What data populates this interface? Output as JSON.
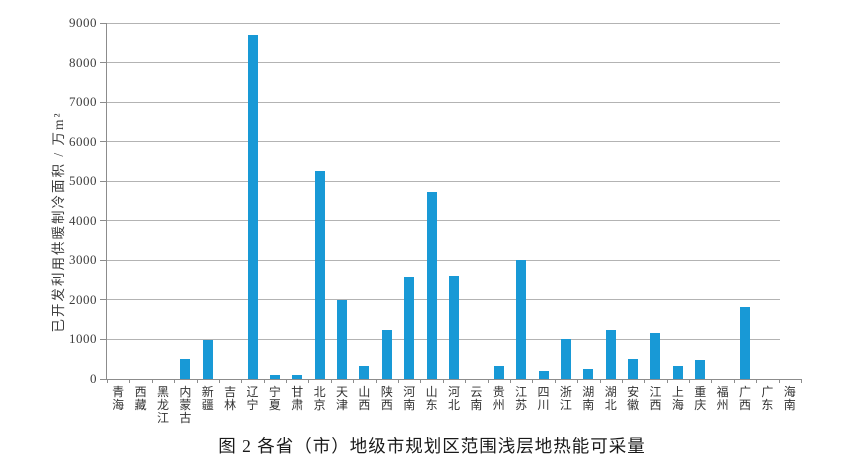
{
  "figure_caption": "图 2 各省（市）地级市规划区范围浅层地热能可采量",
  "chart_data": {
    "type": "bar",
    "title": "",
    "xlabel": "",
    "ylabel": "已开发利用供暖制冷面积 / 万m²",
    "ylim": [
      0,
      9000
    ],
    "yticks": [
      0,
      1000,
      2000,
      3000,
      4000,
      5000,
      6000,
      7000,
      8000,
      9000
    ],
    "grid": "horizontal",
    "legend_position": "none",
    "categories": [
      "青海",
      "西藏",
      "黑龙江",
      "内蒙古",
      "新疆",
      "吉林",
      "辽宁",
      "宁夏",
      "甘肃",
      "北京",
      "天津",
      "山西",
      "陕西",
      "河南",
      "山东",
      "河北",
      "云南",
      "贵州",
      "江苏",
      "四川",
      "浙江",
      "湖南",
      "湖北",
      "安徽",
      "江西",
      "上海",
      "重庆",
      "福州",
      "广西",
      "广东",
      "海南"
    ],
    "values": [
      0,
      0,
      0,
      510,
      990,
      0,
      8700,
      90,
      110,
      5260,
      2000,
      340,
      1250,
      2580,
      4740,
      2600,
      0,
      320,
      3020,
      210,
      1020,
      260,
      1250,
      510,
      1160,
      340,
      490,
      0,
      1820,
      0,
      0
    ],
    "colors": {
      "bar": "#1899d6",
      "gridline": "#b3b3b3",
      "axis": "#8c8c8c",
      "tick_text": "#333333",
      "caption_text": "#1a1a1a"
    }
  }
}
